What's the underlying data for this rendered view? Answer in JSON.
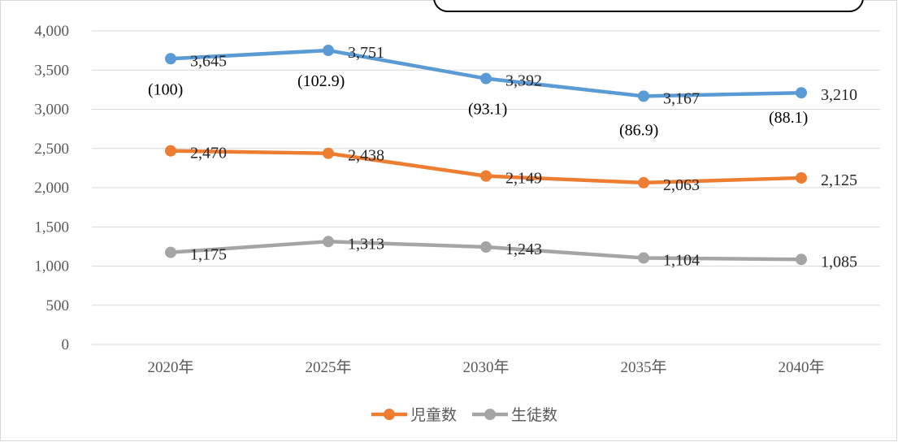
{
  "chart_data": {
    "type": "line",
    "categories": [
      "2020年",
      "2025年",
      "2030年",
      "2035年",
      "2040年"
    ],
    "ylim": [
      0,
      4000
    ],
    "yticks": [
      0,
      500,
      1000,
      1500,
      2000,
      2500,
      3000,
      3500,
      4000
    ],
    "ytick_labels": [
      "0",
      "500",
      "1,000",
      "1,500",
      "2,000",
      "2,500",
      "3,000",
      "3,500",
      "4,000"
    ],
    "grid": true,
    "legend_position": "bottom",
    "series": [
      {
        "name": "",
        "color": "#5b9bd5",
        "values": [
          3645,
          3751,
          3392,
          3167,
          3210
        ],
        "labels": [
          "3,645",
          "3,751",
          "3,392",
          "3,167",
          "3,210"
        ],
        "index_labels": [
          "(100)",
          "(102.9)",
          "(93.1)",
          "(86.9)",
          "(88.1)"
        ],
        "show_in_legend": false
      },
      {
        "name": "児童数",
        "color": "#ed7d31",
        "values": [
          2470,
          2438,
          2149,
          2063,
          2125
        ],
        "labels": [
          "2,470",
          "2,438",
          "2,149",
          "2,063",
          "2,125"
        ],
        "show_in_legend": true
      },
      {
        "name": "生徒数",
        "color": "#a5a5a5",
        "values": [
          1175,
          1313,
          1243,
          1104,
          1085
        ],
        "labels": [
          "1,175",
          "1,313",
          "1,243",
          "1,104",
          "1,085"
        ],
        "show_in_legend": true
      }
    ]
  }
}
